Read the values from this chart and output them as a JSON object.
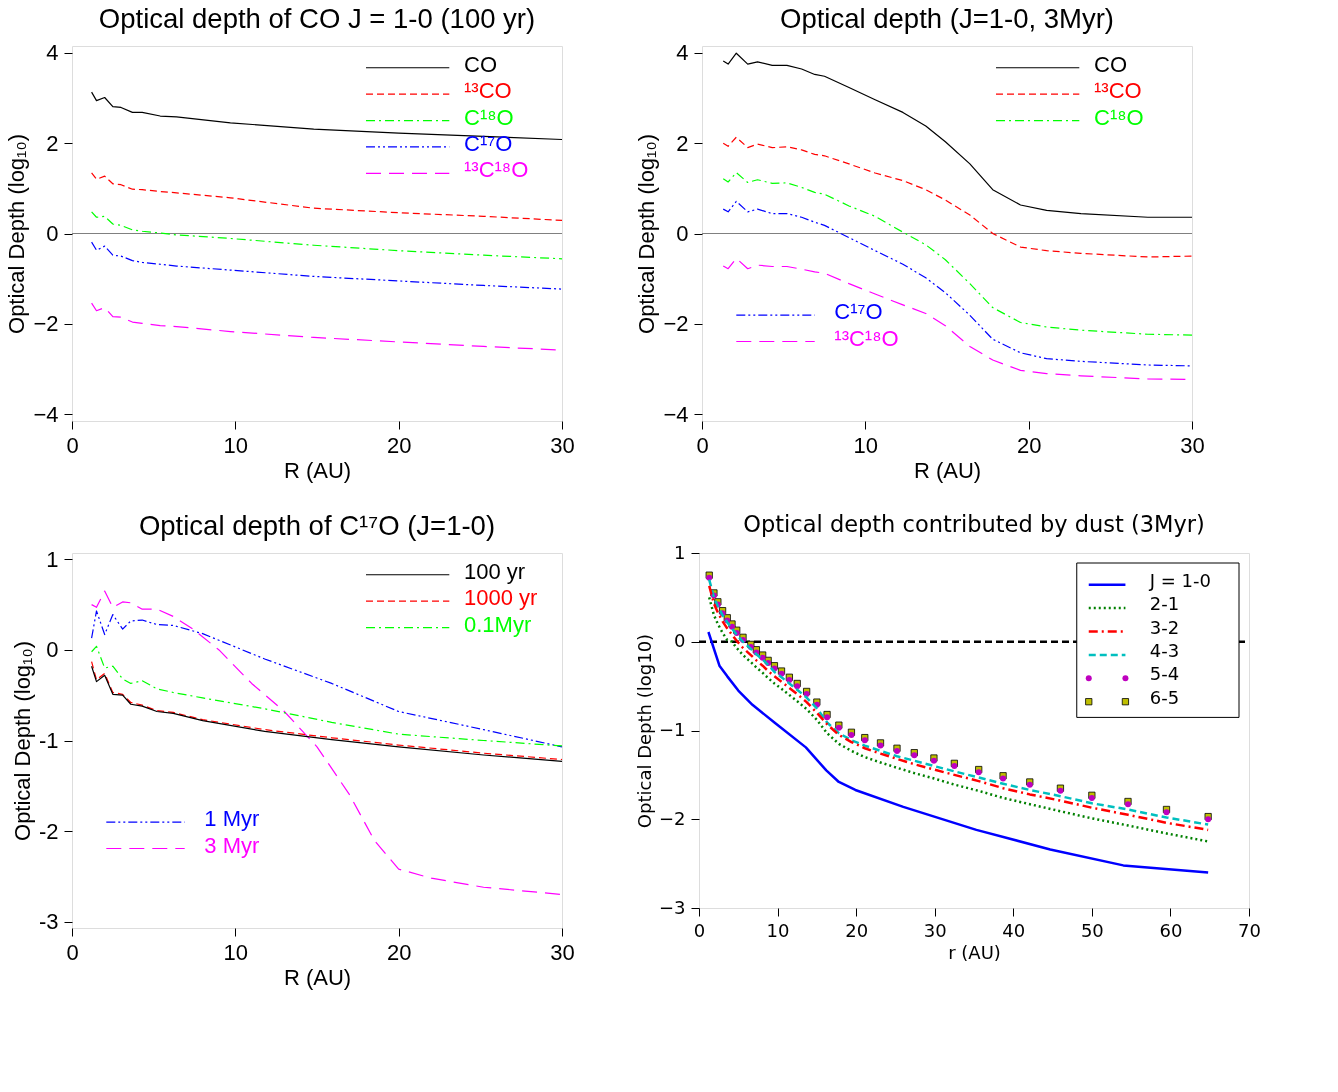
{
  "chart_data": [
    {
      "type": "line",
      "title": "Optical depth of CO J = 1-0 (100 yr)",
      "xlabel": "R (AU)",
      "ylabel": "Optical Depth (log₁₀)",
      "xlim": [
        0,
        30
      ],
      "ylim": [
        -4.15,
        4.15
      ],
      "xticks": [
        0,
        10,
        20,
        30
      ],
      "yticks": [
        -4,
        -2,
        0,
        2,
        4
      ],
      "grid": false,
      "legend": "top right",
      "x": [
        1.2,
        1.5,
        2.0,
        2.5,
        3.0,
        3.7,
        4.3,
        5.4,
        6.4,
        9.7,
        14.8,
        20.0,
        25.2,
        30.0
      ],
      "series": [
        {
          "name": "CO",
          "color": "#000000",
          "line_style": "solid",
          "values": [
            3.13,
            2.94,
            3.01,
            2.81,
            2.79,
            2.68,
            2.68,
            2.6,
            2.58,
            2.45,
            2.31,
            2.22,
            2.15,
            2.08
          ]
        },
        {
          "name": "¹³CO",
          "color": "#ff0000",
          "line_style": "dashed",
          "values": [
            1.34,
            1.2,
            1.27,
            1.1,
            1.08,
            0.98,
            0.97,
            0.93,
            0.9,
            0.79,
            0.56,
            0.46,
            0.38,
            0.29
          ]
        },
        {
          "name": "C¹⁸O",
          "color": "#00ff00",
          "line_style": "dashdot",
          "values": [
            0.48,
            0.36,
            0.38,
            0.21,
            0.18,
            0.08,
            0.05,
            0.01,
            -0.03,
            -0.11,
            -0.26,
            -0.38,
            -0.48,
            -0.56
          ]
        },
        {
          "name": "C¹⁷O",
          "color": "#0000ff",
          "line_style": "dashdotdot",
          "values": [
            -0.19,
            -0.37,
            -0.28,
            -0.48,
            -0.5,
            -0.6,
            -0.64,
            -0.68,
            -0.72,
            -0.81,
            -0.95,
            -1.05,
            -1.15,
            -1.23
          ]
        },
        {
          "name": "¹³C¹⁸O",
          "color": "#ff00ff",
          "line_style": "longdash",
          "values": [
            -1.54,
            -1.71,
            -1.64,
            -1.84,
            -1.85,
            -1.96,
            -1.99,
            -2.04,
            -2.06,
            -2.17,
            -2.3,
            -2.4,
            -2.5,
            -2.58
          ]
        }
      ],
      "ref_lines": [
        {
          "axis": "y",
          "value": 0,
          "color": "#808080",
          "line_style": "solid"
        }
      ]
    },
    {
      "type": "line",
      "title": "Optical depth (J=1-0, 3Myr)",
      "xlabel": "R (AU)",
      "ylabel": "Optical Depth (log₁₀)",
      "xlim": [
        0,
        30
      ],
      "ylim": [
        -4.15,
        4.15
      ],
      "xticks": [
        0,
        10,
        20,
        30
      ],
      "yticks": [
        -4,
        -2,
        0,
        2,
        4
      ],
      "grid": false,
      "legend": [
        "top right",
        "bottom left"
      ],
      "x": [
        1.3,
        1.6,
        2.1,
        2.8,
        3.4,
        4.3,
        5.2,
        6.1,
        6.9,
        7.5,
        9.0,
        10.6,
        12.3,
        13.7,
        14.9,
        16.4,
        17.8,
        19.5,
        21.1,
        23.2,
        27.3,
        30.0
      ],
      "series": [
        {
          "name": "CO",
          "color": "#000000",
          "line_style": "solid",
          "values": [
            3.82,
            3.75,
            3.99,
            3.75,
            3.8,
            3.72,
            3.72,
            3.64,
            3.52,
            3.48,
            3.23,
            2.96,
            2.68,
            2.38,
            2.03,
            1.54,
            0.97,
            0.63,
            0.51,
            0.44,
            0.36,
            0.36
          ]
        },
        {
          "name": "¹³CO",
          "color": "#ff0000",
          "line_style": "dashed",
          "values": [
            2.0,
            1.93,
            2.13,
            1.9,
            1.98,
            1.9,
            1.92,
            1.85,
            1.75,
            1.72,
            1.54,
            1.34,
            1.17,
            0.97,
            0.74,
            0.41,
            0.0,
            -0.3,
            -0.38,
            -0.44,
            -0.52,
            -0.5
          ]
        },
        {
          "name": "C¹⁸O",
          "color": "#00ff00",
          "line_style": "dashdot",
          "values": [
            1.21,
            1.14,
            1.35,
            1.13,
            1.19,
            1.11,
            1.12,
            1.02,
            0.91,
            0.87,
            0.61,
            0.38,
            0.03,
            -0.25,
            -0.58,
            -1.11,
            -1.64,
            -1.97,
            -2.07,
            -2.14,
            -2.23,
            -2.25
          ]
        },
        {
          "name": "C¹⁷O",
          "color": "#0000ff",
          "line_style": "dashdotdot",
          "values": [
            0.54,
            0.48,
            0.71,
            0.48,
            0.54,
            0.44,
            0.44,
            0.36,
            0.25,
            0.18,
            -0.09,
            -0.38,
            -0.68,
            -0.98,
            -1.31,
            -1.81,
            -2.34,
            -2.64,
            -2.77,
            -2.83,
            -2.91,
            -2.93
          ]
        },
        {
          "name": "¹³C¹⁸O",
          "color": "#ff00ff",
          "line_style": "longdash",
          "values": [
            -0.72,
            -0.78,
            -0.55,
            -0.78,
            -0.7,
            -0.73,
            -0.73,
            -0.79,
            -0.85,
            -0.88,
            -1.11,
            -1.34,
            -1.58,
            -1.77,
            -2.04,
            -2.5,
            -2.8,
            -3.03,
            -3.1,
            -3.15,
            -3.22,
            -3.23
          ]
        }
      ],
      "ref_lines": [
        {
          "axis": "y",
          "value": 0,
          "color": "#808080",
          "line_style": "solid"
        }
      ]
    },
    {
      "type": "line",
      "title": "Optical depth of C¹⁷O (J=1-0)",
      "xlabel": "R (AU)",
      "ylabel": "Optical Depth (log₁₀)",
      "xlim": [
        0,
        30
      ],
      "ylim": [
        -3.07,
        1.07
      ],
      "xticks": [
        0,
        10,
        20,
        30
      ],
      "yticks": [
        {
          "value": -3,
          "label": "-3"
        },
        {
          "value": -2,
          "label": "-2"
        },
        {
          "value": -1,
          "label": "-1"
        },
        {
          "value": 0,
          "label": "0"
        },
        {
          "value": 1,
          "label": "1"
        }
      ],
      "grid": false,
      "legend": [
        "top right",
        "bottom left"
      ],
      "x": [
        1.2,
        1.5,
        2.0,
        2.5,
        3.1,
        3.6,
        4.3,
        5.2,
        6.2,
        8.0,
        11.8,
        15.9,
        20.0,
        25.2,
        30.0
      ],
      "series": [
        {
          "name": "100 yr",
          "color": "#000000",
          "line_style": "solid",
          "values": [
            -0.18,
            -0.35,
            -0.28,
            -0.49,
            -0.5,
            -0.6,
            -0.62,
            -0.68,
            -0.7,
            -0.78,
            -0.9,
            -0.99,
            -1.07,
            -1.16,
            -1.23
          ]
        },
        {
          "name": "1000 yr",
          "color": "#ff0000",
          "line_style": "dashed",
          "values": [
            -0.13,
            -0.33,
            -0.26,
            -0.47,
            -0.49,
            -0.58,
            -0.61,
            -0.67,
            -0.69,
            -0.77,
            -0.88,
            -0.97,
            -1.05,
            -1.14,
            -1.21
          ]
        },
        {
          "name": "0.1Myr",
          "color": "#00ff00",
          "line_style": "dashdot",
          "values": [
            -0.02,
            0.04,
            -0.2,
            -0.18,
            -0.32,
            -0.37,
            -0.34,
            -0.43,
            -0.47,
            -0.53,
            -0.65,
            -0.8,
            -0.93,
            -1.0,
            -1.06
          ]
        },
        {
          "name": "1 Myr",
          "color": "#0000ff",
          "line_style": "dashdotdot",
          "values": [
            0.13,
            0.43,
            0.17,
            0.39,
            0.23,
            0.32,
            0.33,
            0.28,
            0.27,
            0.18,
            -0.1,
            -0.37,
            -0.68,
            -0.88,
            -1.07
          ]
        },
        {
          "name": "3 Myr",
          "color": "#ff00ff",
          "line_style": "longdash",
          "x": [
            1.2,
            1.5,
            2.0,
            2.5,
            3.1,
            3.6,
            4.3,
            5.2,
            6.2,
            7.4,
            9.0,
            11.0,
            13.0,
            15.0,
            17.0,
            18.5,
            20.0,
            22.0,
            25.2,
            30.0
          ],
          "values": [
            0.5,
            0.47,
            0.65,
            0.47,
            0.53,
            0.52,
            0.45,
            0.45,
            0.37,
            0.23,
            0.0,
            -0.37,
            -0.68,
            -1.07,
            -1.6,
            -2.1,
            -2.42,
            -2.52,
            -2.62,
            -2.7
          ]
        }
      ]
    },
    {
      "type": "line",
      "title": "Optical depth contributed by dust (3Myr)",
      "xlabel": "r (AU)",
      "ylabel": "Optical Depth (log10)",
      "xlim": [
        0,
        70
      ],
      "ylim": [
        -3,
        1
      ],
      "xticks": [
        0,
        10,
        20,
        30,
        40,
        50,
        60,
        70
      ],
      "yticks": [
        {
          "value": -3,
          "label": "−3"
        },
        {
          "value": -2,
          "label": "−2"
        },
        {
          "value": -1,
          "label": "−1"
        },
        {
          "value": 0,
          "label": "0"
        },
        {
          "value": 1,
          "label": "1"
        }
      ],
      "grid": false,
      "legend": "top right",
      "x": [
        1.3,
        1.9,
        2.4,
        3.0,
        3.6,
        4.2,
        4.8,
        5.6,
        6.6,
        7.3,
        8.1,
        8.8,
        9.6,
        10.5,
        11.5,
        12.5,
        13.7,
        15.0,
        16.3,
        17.8,
        19.4,
        21.1,
        23.1,
        25.2,
        27.4,
        29.9,
        32.5,
        35.6,
        38.7,
        42.1,
        46.0,
        50.0,
        54.6,
        59.5,
        64.8
      ],
      "series": [
        {
          "name": "J = 1-0",
          "color": "#0000ff",
          "line_style": "solid",
          "x": [
            1.2,
            2.6,
            3.6,
            5.0,
            6.8,
            9.6,
            13.6,
            16.2,
            17.8,
            19.9,
            26.0,
            35.3,
            44.7,
            54.0,
            64.8
          ],
          "values": [
            0.11,
            -0.27,
            -0.39,
            -0.55,
            -0.71,
            -0.91,
            -1.19,
            -1.45,
            -1.58,
            -1.67,
            -1.86,
            -2.12,
            -2.34,
            -2.52,
            -2.6
          ]
        },
        {
          "name": "2-1",
          "color": "#008000",
          "line_style": "dotted",
          "values": [
            0.5,
            0.3,
            0.2,
            0.1,
            0.02,
            0.0,
            -0.07,
            -0.15,
            -0.23,
            -0.29,
            -0.35,
            -0.41,
            -0.47,
            -0.53,
            -0.6,
            -0.67,
            -0.76,
            -0.88,
            -1.03,
            -1.15,
            -1.23,
            -1.3,
            -1.36,
            -1.42,
            -1.48,
            -1.54,
            -1.61,
            -1.68,
            -1.76,
            -1.83,
            -1.91,
            -1.99,
            -2.07,
            -2.16,
            -2.25
          ]
        },
        {
          "name": "3-2",
          "color": "#ff0000",
          "line_style": "dashdot",
          "values": [
            0.63,
            0.43,
            0.33,
            0.23,
            0.15,
            0.08,
            0.01,
            -0.07,
            -0.15,
            -0.21,
            -0.27,
            -0.33,
            -0.39,
            -0.45,
            -0.52,
            -0.59,
            -0.68,
            -0.8,
            -0.93,
            -1.05,
            -1.13,
            -1.2,
            -1.26,
            -1.32,
            -1.38,
            -1.44,
            -1.5,
            -1.57,
            -1.65,
            -1.72,
            -1.79,
            -1.87,
            -1.95,
            -2.04,
            -2.12
          ]
        },
        {
          "name": "4-3",
          "color": "#00bfbf",
          "line_style": "dashed",
          "values": [
            0.7,
            0.5,
            0.4,
            0.3,
            0.22,
            0.15,
            0.08,
            0.0,
            -0.08,
            -0.14,
            -0.2,
            -0.26,
            -0.34,
            -0.4,
            -0.47,
            -0.54,
            -0.63,
            -0.75,
            -0.91,
            -1.03,
            -1.11,
            -1.17,
            -1.23,
            -1.29,
            -1.34,
            -1.4,
            -1.46,
            -1.53,
            -1.6,
            -1.67,
            -1.74,
            -1.82,
            -1.89,
            -1.98,
            -2.06
          ]
        },
        {
          "name": "5-4",
          "type": "scatter",
          "marker": "circle",
          "color": "#bf00bf",
          "values": [
            0.72,
            0.52,
            0.42,
            0.32,
            0.24,
            0.17,
            0.1,
            0.02,
            -0.06,
            -0.12,
            -0.18,
            -0.24,
            -0.3,
            -0.36,
            -0.43,
            -0.5,
            -0.59,
            -0.71,
            -0.85,
            -0.97,
            -1.05,
            -1.11,
            -1.17,
            -1.23,
            -1.28,
            -1.34,
            -1.4,
            -1.47,
            -1.54,
            -1.61,
            -1.68,
            -1.76,
            -1.83,
            -1.92,
            -2.0
          ]
        },
        {
          "name": "6-5",
          "type": "scatter",
          "marker": "square",
          "color": "#bfbf00",
          "values": [
            0.75,
            0.55,
            0.45,
            0.35,
            0.27,
            0.2,
            0.13,
            0.05,
            -0.03,
            -0.09,
            -0.15,
            -0.21,
            -0.27,
            -0.33,
            -0.4,
            -0.47,
            -0.56,
            -0.68,
            -0.82,
            -0.94,
            -1.02,
            -1.08,
            -1.14,
            -1.2,
            -1.25,
            -1.31,
            -1.37,
            -1.44,
            -1.51,
            -1.58,
            -1.65,
            -1.73,
            -1.8,
            -1.89,
            -1.97
          ]
        }
      ],
      "ref_lines": [
        {
          "axis": "y",
          "value": 0,
          "color": "#000000",
          "line_style": "dashed"
        }
      ]
    }
  ]
}
